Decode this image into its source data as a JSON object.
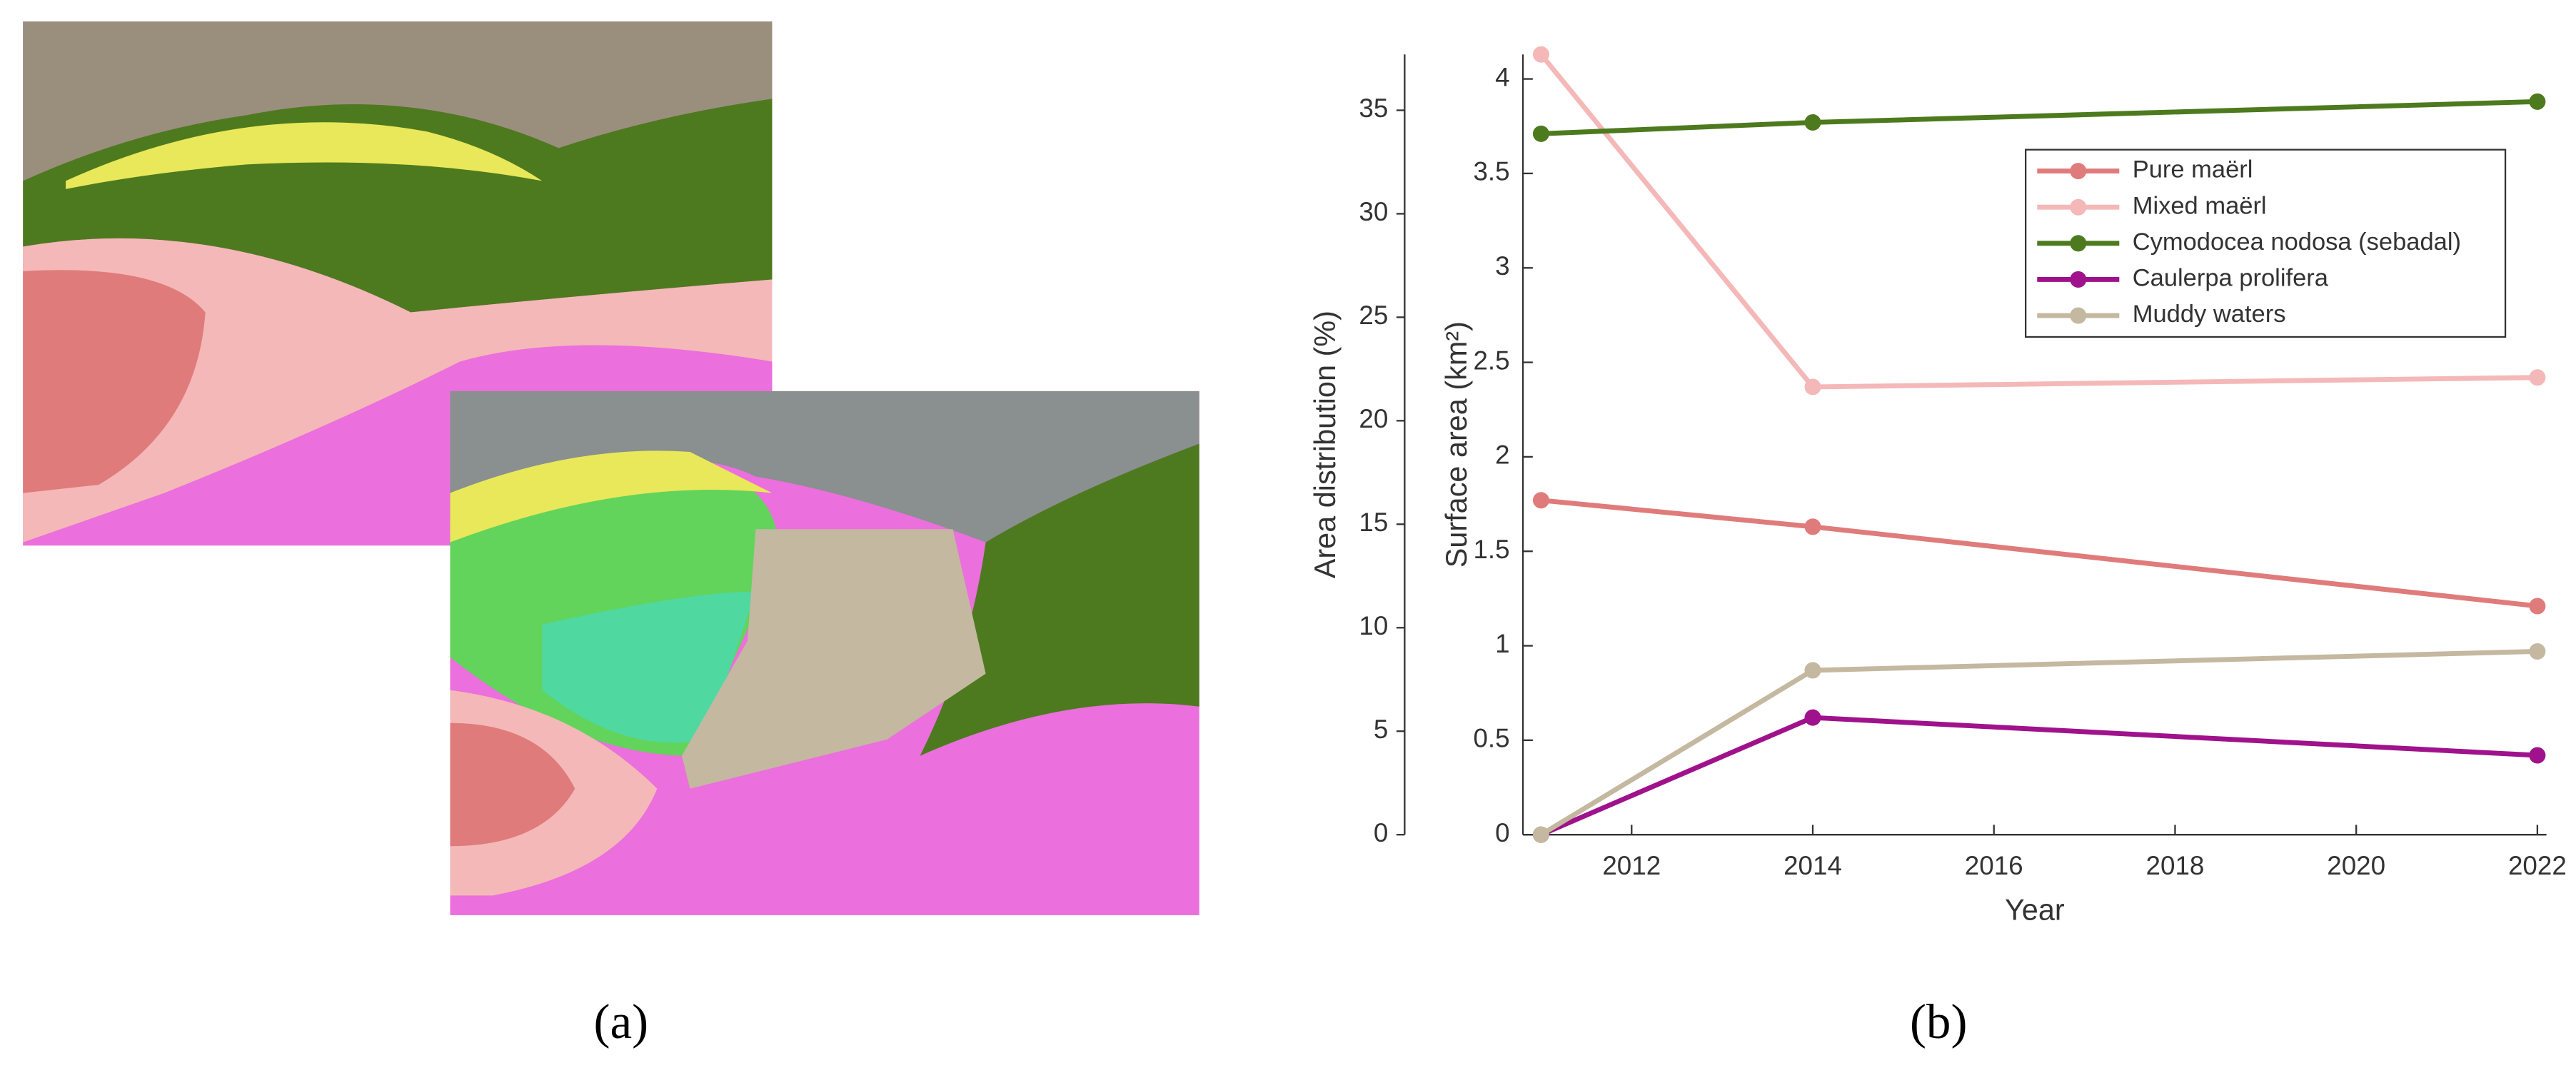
{
  "panel_labels": [
    "(a)",
    "(b)"
  ],
  "chart_data": {
    "type": "line",
    "xlabel": "Year",
    "ylabel": "Surface area (km²)",
    "y2label": "Area distribution (%)",
    "x": [
      2011,
      2014,
      2022
    ],
    "xlim": [
      2010.8,
      2022.1
    ],
    "xticks": [
      2012,
      2014,
      2016,
      2018,
      2020,
      2022
    ],
    "ylim": [
      0,
      4.13
    ],
    "yticks": [
      0,
      0.5,
      1,
      1.5,
      2,
      2.5,
      3,
      3.5,
      4
    ],
    "y2lim": [
      0,
      37.7
    ],
    "y2ticks": [
      0,
      5,
      10,
      15,
      20,
      25,
      30,
      35
    ],
    "legend": "upper right",
    "series": [
      {
        "name": "Pure maërl",
        "color": "#e07b7b",
        "values": [
          1.77,
          1.63,
          1.21
        ]
      },
      {
        "name": "Mixed maërl",
        "color": "#f4b8b8",
        "values": [
          4.13,
          2.37,
          2.42
        ]
      },
      {
        "name": "Cymodocea nodosa (sebadal)",
        "color": "#4d7a1e",
        "values": [
          3.71,
          3.77,
          3.88
        ]
      },
      {
        "name": "Caulerpa prolifera",
        "color": "#a0128c",
        "values": [
          0,
          0.62,
          0.42
        ]
      },
      {
        "name": "Muddy waters",
        "color": "#c4b8a0",
        "values": [
          0,
          0.87,
          0.97
        ]
      }
    ]
  }
}
